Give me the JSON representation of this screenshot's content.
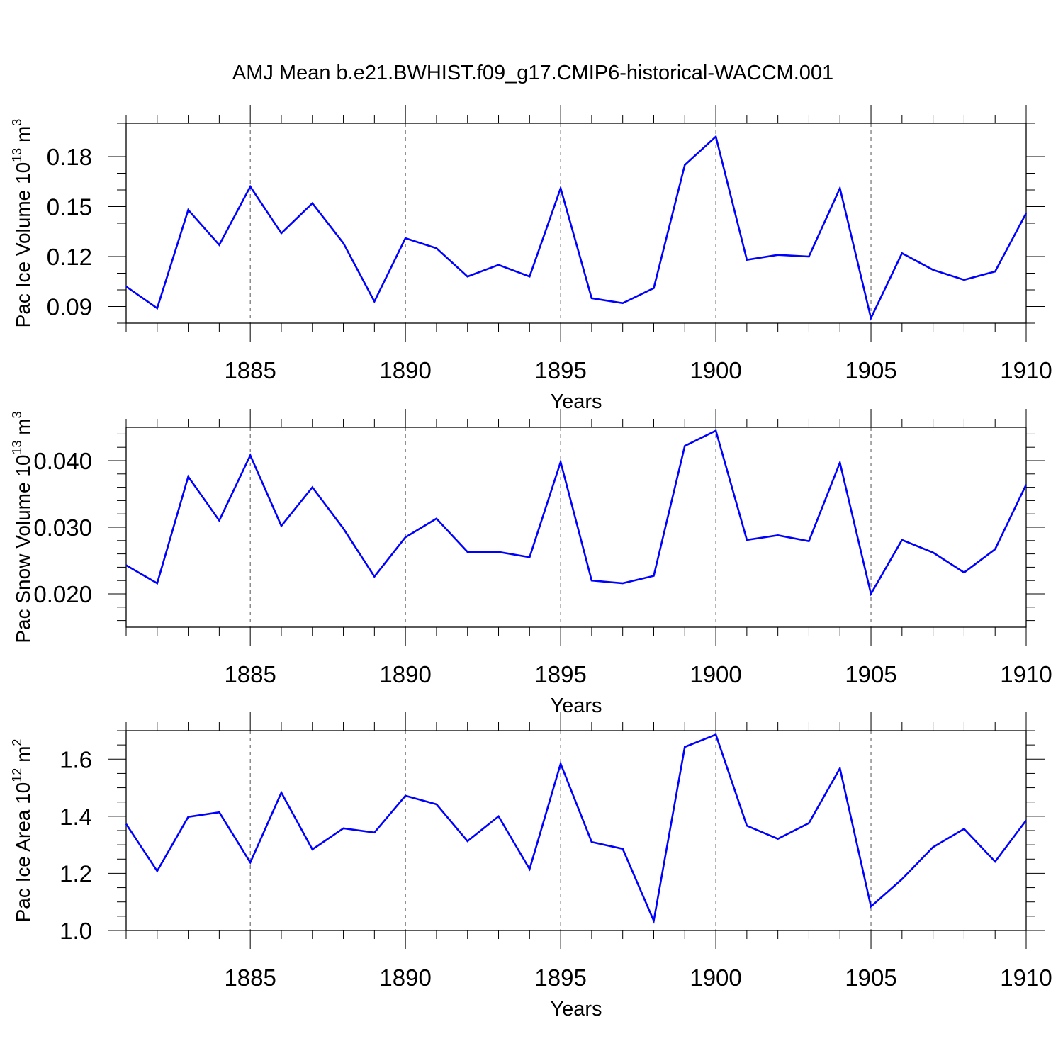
{
  "title": "AMJ Mean b.e21.BWHIST.f09_g17.CMIP6-historical-WACCM.001",
  "line_color": "#0000ff",
  "chart_data": [
    {
      "type": "line",
      "ylabel": "Pac Ice Volume 10",
      "ylabel_exp": "13",
      "ylabel_unit": " m",
      "ylabel_unit_exp": "3",
      "xlabel": "Years",
      "xlim": [
        1881,
        1910
      ],
      "ylim": [
        0.08,
        0.2
      ],
      "yticks": [
        0.09,
        0.12,
        0.15,
        0.18
      ],
      "ytick_labels": [
        "0.09",
        "0.12",
        "0.15",
        "0.18"
      ],
      "yminor_step": 0.01,
      "xticks": [
        1885,
        1890,
        1895,
        1900,
        1905,
        1910
      ],
      "xtick_labels": [
        "1885",
        "1890",
        "1895",
        "1900",
        "1905",
        "1910"
      ],
      "x": [
        1881,
        1882,
        1883,
        1884,
        1885,
        1886,
        1887,
        1888,
        1889,
        1890,
        1891,
        1892,
        1893,
        1894,
        1895,
        1896,
        1897,
        1898,
        1899,
        1900,
        1901,
        1902,
        1903,
        1904,
        1905,
        1906,
        1907,
        1908,
        1909,
        1910
      ],
      "y": [
        0.102,
        0.089,
        0.148,
        0.127,
        0.162,
        0.134,
        0.152,
        0.128,
        0.093,
        0.131,
        0.125,
        0.108,
        0.115,
        0.108,
        0.161,
        0.095,
        0.092,
        0.101,
        0.175,
        0.192,
        0.118,
        0.121,
        0.12,
        0.161,
        0.083,
        0.122,
        0.112,
        0.106,
        0.111,
        0.146
      ]
    },
    {
      "type": "line",
      "ylabel": "Pac Snow Volume 10",
      "ylabel_exp": "13",
      "ylabel_unit": " m",
      "ylabel_unit_exp": "3",
      "xlabel": "Years",
      "xlim": [
        1881,
        1910
      ],
      "ylim": [
        0.015,
        0.045
      ],
      "yticks": [
        0.02,
        0.03,
        0.04
      ],
      "ytick_labels": [
        "0.020",
        "0.030",
        "0.040"
      ],
      "yminor_step": 0.002,
      "xticks": [
        1885,
        1890,
        1895,
        1900,
        1905,
        1910
      ],
      "xtick_labels": [
        "1885",
        "1890",
        "1895",
        "1900",
        "1905",
        "1910"
      ],
      "x": [
        1881,
        1882,
        1883,
        1884,
        1885,
        1886,
        1887,
        1888,
        1889,
        1890,
        1891,
        1892,
        1893,
        1894,
        1895,
        1896,
        1897,
        1898,
        1899,
        1900,
        1901,
        1902,
        1903,
        1904,
        1905,
        1906,
        1907,
        1908,
        1909,
        1910
      ],
      "y": [
        0.0243,
        0.0216,
        0.0376,
        0.031,
        0.0408,
        0.0302,
        0.036,
        0.0298,
        0.0226,
        0.0285,
        0.0313,
        0.0263,
        0.0263,
        0.0255,
        0.0398,
        0.022,
        0.0216,
        0.0227,
        0.0422,
        0.0445,
        0.0281,
        0.0288,
        0.0279,
        0.0397,
        0.02,
        0.0281,
        0.0262,
        0.0232,
        0.0267,
        0.0364
      ]
    },
    {
      "type": "line",
      "ylabel": "Pac Ice Area 10",
      "ylabel_exp": "12",
      "ylabel_unit": " m",
      "ylabel_unit_exp": "2",
      "xlabel": "Years",
      "xlim": [
        1881,
        1910
      ],
      "ylim": [
        1.0,
        1.7
      ],
      "yticks": [
        1.0,
        1.2,
        1.4,
        1.6
      ],
      "ytick_labels": [
        "1.0",
        "1.2",
        "1.4",
        "1.6"
      ],
      "yminor_step": 0.05,
      "xticks": [
        1885,
        1890,
        1895,
        1900,
        1905,
        1910
      ],
      "xtick_labels": [
        "1885",
        "1890",
        "1895",
        "1900",
        "1905",
        "1910"
      ],
      "x": [
        1881,
        1882,
        1883,
        1884,
        1885,
        1886,
        1887,
        1888,
        1889,
        1890,
        1891,
        1892,
        1893,
        1894,
        1895,
        1896,
        1897,
        1898,
        1899,
        1900,
        1901,
        1902,
        1903,
        1904,
        1905,
        1906,
        1907,
        1908,
        1909,
        1910
      ],
      "y": [
        1.373,
        1.208,
        1.398,
        1.414,
        1.238,
        1.483,
        1.284,
        1.358,
        1.343,
        1.472,
        1.442,
        1.313,
        1.4,
        1.215,
        1.584,
        1.31,
        1.286,
        1.034,
        1.643,
        1.686,
        1.367,
        1.321,
        1.376,
        1.568,
        1.084,
        1.18,
        1.292,
        1.356,
        1.241,
        1.386
      ]
    }
  ]
}
